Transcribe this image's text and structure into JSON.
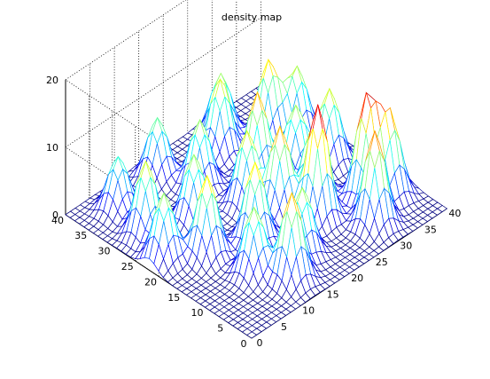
{
  "chart_data": {
    "type": "surface",
    "title": "density map",
    "xlabel": "",
    "ylabel": "",
    "zlabel": "",
    "xlim": [
      0,
      40
    ],
    "ylim": [
      0,
      40
    ],
    "zlim": [
      0,
      20
    ],
    "x_ticks": [
      0,
      5,
      10,
      15,
      20,
      25,
      30,
      35,
      40
    ],
    "y_ticks": [
      0,
      5,
      10,
      15,
      20,
      25,
      30,
      35,
      40
    ],
    "z_ticks": [
      0,
      10,
      20
    ],
    "grid": true,
    "view": "default 3-D (azimuth -37.5)",
    "colormap": "jet (dark blue low, cyan mid, yellow high)",
    "grid_size": 40,
    "peaks": [
      {
        "x": 25,
        "y": 12,
        "z": 17
      },
      {
        "x": 30,
        "y": 5,
        "z": 14
      },
      {
        "x": 22,
        "y": 17,
        "z": 13
      },
      {
        "x": 33,
        "y": 10,
        "z": 15
      },
      {
        "x": 28,
        "y": 16,
        "z": 11
      },
      {
        "x": 36,
        "y": 8,
        "z": 12
      },
      {
        "x": 18,
        "y": 8,
        "z": 10
      },
      {
        "x": 13,
        "y": 5,
        "z": 13
      },
      {
        "x": 10,
        "y": 10,
        "z": 10
      },
      {
        "x": 15,
        "y": 15,
        "z": 12
      },
      {
        "x": 20,
        "y": 22,
        "z": 11
      },
      {
        "x": 25,
        "y": 25,
        "z": 13
      },
      {
        "x": 30,
        "y": 22,
        "z": 10
      },
      {
        "x": 35,
        "y": 20,
        "z": 11
      },
      {
        "x": 8,
        "y": 18,
        "z": 12
      },
      {
        "x": 12,
        "y": 25,
        "z": 10
      },
      {
        "x": 5,
        "y": 28,
        "z": 11
      },
      {
        "x": 18,
        "y": 30,
        "z": 10
      },
      {
        "x": 25,
        "y": 33,
        "z": 11
      },
      {
        "x": 32,
        "y": 30,
        "z": 12
      },
      {
        "x": 15,
        "y": 36,
        "z": 9
      },
      {
        "x": 6,
        "y": 35,
        "z": 8
      },
      {
        "x": 3,
        "y": 22,
        "z": 10
      },
      {
        "x": 28,
        "y": 36,
        "z": 9
      },
      {
        "x": 36,
        "y": 28,
        "z": 10
      }
    ],
    "peak_width": 1.6
  }
}
